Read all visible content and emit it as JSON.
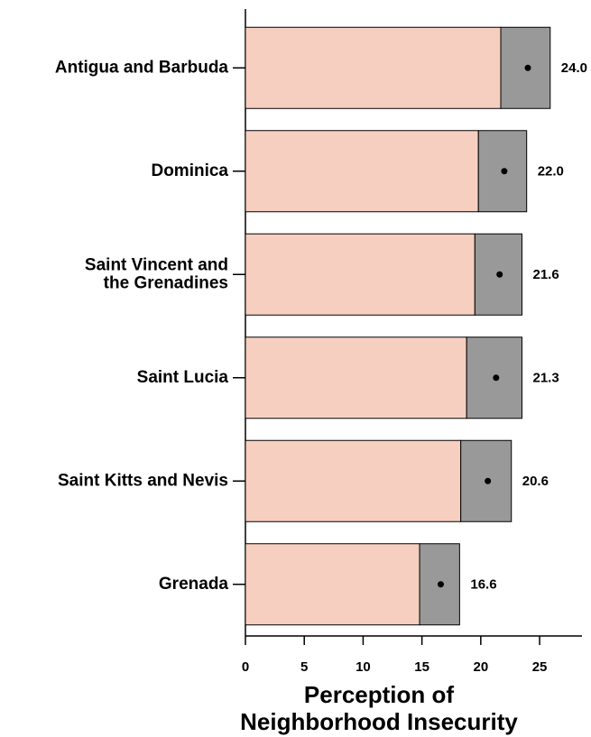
{
  "chart_data": {
    "type": "bar",
    "x_label": "Perception of\nNeighborhood Insecurity",
    "categories": [
      "Antigua and Barbuda",
      "Dominica",
      "Saint Vincent and\nthe Grenadines",
      "Saint Lucia",
      "Saint Kitts and Nevis",
      "Grenada"
    ],
    "values": [
      24.0,
      22.0,
      21.6,
      21.3,
      20.6,
      16.6
    ],
    "value_labels": [
      "24.0",
      "22.0",
      "21.6",
      "21.3",
      "20.6",
      "16.6"
    ],
    "lower": [
      21.7,
      19.8,
      19.5,
      18.8,
      18.3,
      14.8
    ],
    "upper": [
      25.9,
      23.9,
      23.5,
      23.5,
      22.6,
      18.2
    ],
    "color": "#f6cfc0",
    "ci_color": "#999999",
    "xlim": [
      0,
      28.6
    ],
    "xticks": [
      0,
      5,
      10,
      15,
      20,
      25
    ]
  }
}
